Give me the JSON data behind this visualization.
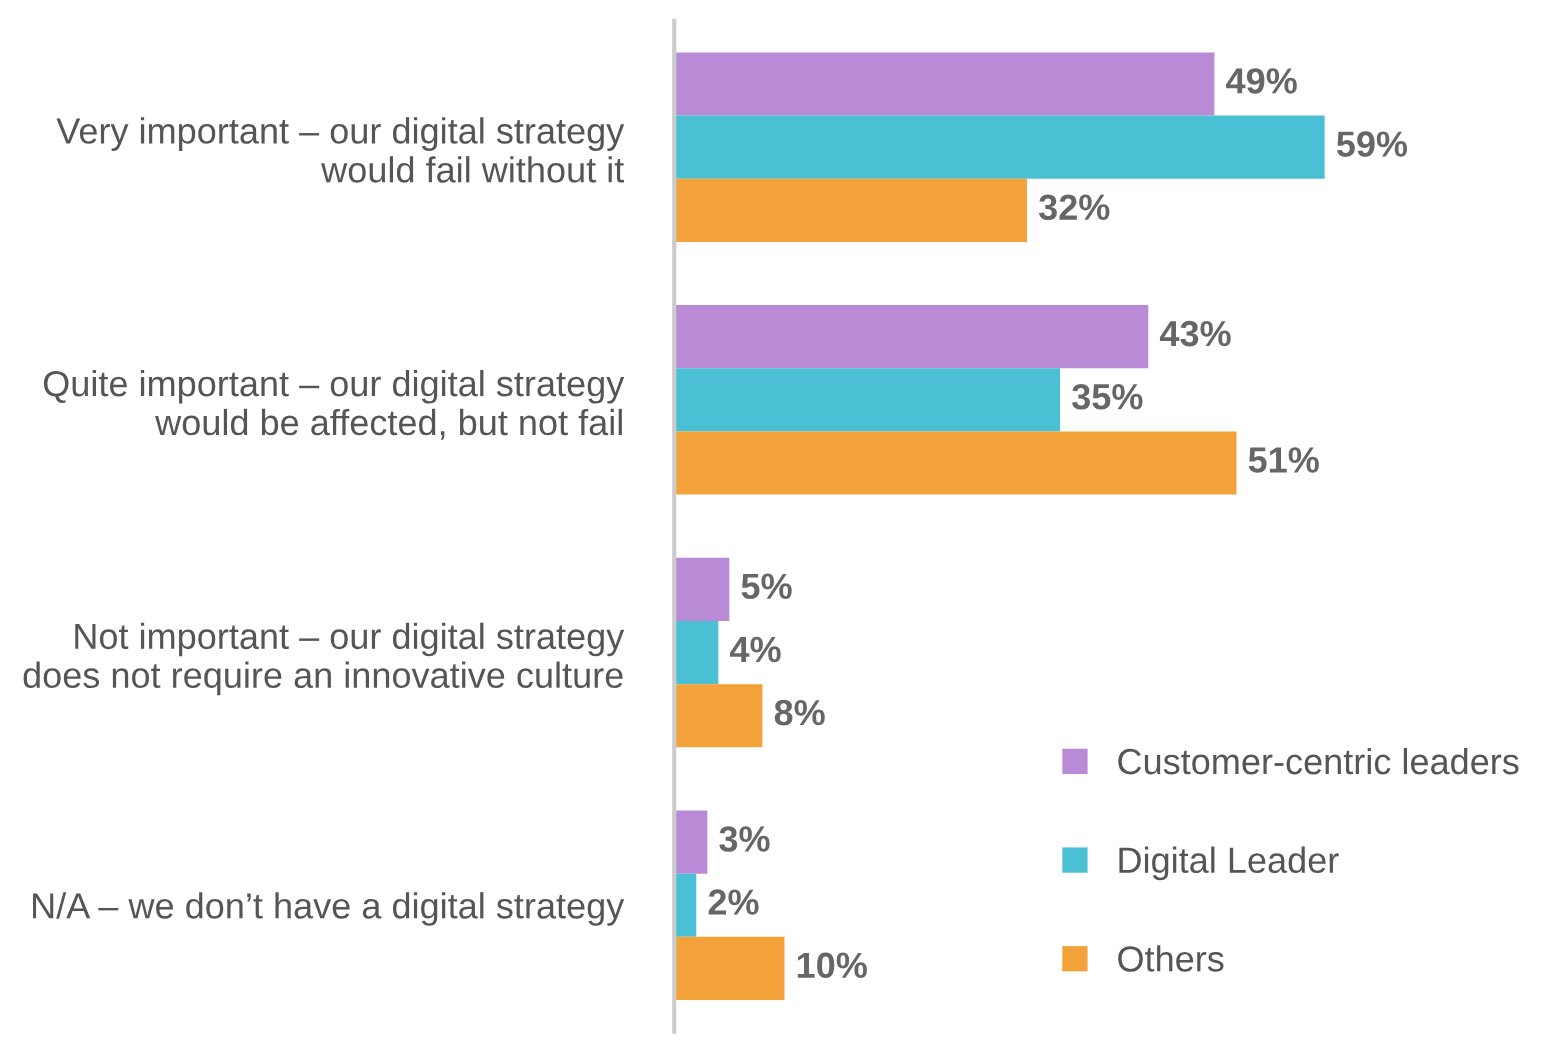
{
  "chart_data": {
    "type": "bar",
    "orientation": "horizontal",
    "categories": [
      "Very important – our digital strategy\nwould fail without it",
      "Quite important – our digital strategy\nwould be affected, but not fail",
      "Not important – our digital strategy\ndoes not require an innovative culture",
      "N/A – we don’t have a digital strategy"
    ],
    "series": [
      {
        "name": "Customer-centric leaders",
        "color": "#b98ad6",
        "values": [
          49,
          43,
          5,
          3
        ],
        "value_labels": [
          "49%",
          "43%",
          "5%",
          "3%"
        ]
      },
      {
        "name": "Digital Leader",
        "color": "#4bbfd4",
        "values": [
          59,
          35,
          4,
          2
        ],
        "value_labels": [
          "59%",
          "35%",
          "4%",
          "2%"
        ]
      },
      {
        "name": "Others",
        "color": "#f3a23a",
        "values": [
          32,
          51,
          8,
          10
        ],
        "value_labels": [
          "32%",
          "51%",
          "8%",
          "10%"
        ]
      }
    ],
    "legend": "bottom right",
    "tick_labels": "y"
  }
}
